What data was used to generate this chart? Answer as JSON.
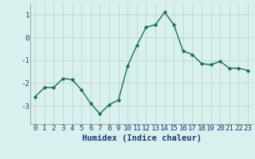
{
  "x": [
    0,
    1,
    2,
    3,
    4,
    5,
    6,
    7,
    8,
    9,
    10,
    11,
    12,
    13,
    14,
    15,
    16,
    17,
    18,
    19,
    20,
    21,
    22,
    23
  ],
  "y": [
    -2.6,
    -2.2,
    -2.2,
    -1.8,
    -1.85,
    -2.3,
    -2.9,
    -3.35,
    -2.95,
    -2.75,
    -1.25,
    -0.35,
    0.45,
    0.55,
    1.1,
    0.55,
    -0.6,
    -0.75,
    -1.15,
    -1.2,
    -1.05,
    -1.35,
    -1.35,
    -1.45
  ],
  "xlabel": "Humidex (Indice chaleur)",
  "xlim": [
    -0.5,
    23.5
  ],
  "ylim": [
    -3.8,
    1.5
  ],
  "yticks": [
    -3,
    -2,
    -1,
    0,
    1
  ],
  "xticks": [
    0,
    1,
    2,
    3,
    4,
    5,
    6,
    7,
    8,
    9,
    10,
    11,
    12,
    13,
    14,
    15,
    16,
    17,
    18,
    19,
    20,
    21,
    22,
    23
  ],
  "line_color": "#1a6b5a",
  "marker_size": 2.5,
  "line_width": 1.0,
  "bg_color": "#d8f0ee",
  "grid_color": "#c0d4d0",
  "tick_label_fontsize": 6.5,
  "xlabel_fontsize": 7.5,
  "xlabel_color": "#1a3a6a",
  "grid_linewidth": 0.6
}
